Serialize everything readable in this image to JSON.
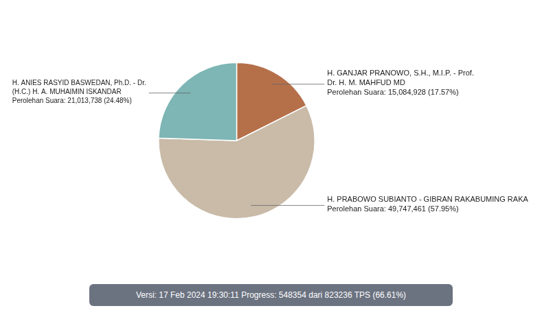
{
  "chart_data": {
    "type": "pie",
    "categories": [
      "H. GANJAR PRANOWO, S.H., M.I.P. - Prof.\nDr. H. M. MAHFUD MD\nPerolehan Suara: 15,084,928 (17.57%)",
      "H. PRABOWO SUBIANTO - GIBRAN RAKABUMING RAKA\nPerolehan Suara: 49,747,461 (57.95%)",
      "H. ANIES RASYID BASWEDAN, Ph.D. - Dr.\n(H.C.) H. A. MUHAIMIN ISKANDAR\nPerolehan Suara: 21,013,738 (24.48%)"
    ],
    "values": [
      17.57,
      57.95,
      24.48
    ],
    "colors": [
      "#b5704a",
      "#c9bba8",
      "#7eb5b5"
    ],
    "footer": "Versi: 17 Feb 2024 19:30:11 Progress: 548354 dari 823236 TPS (66.61%)"
  }
}
